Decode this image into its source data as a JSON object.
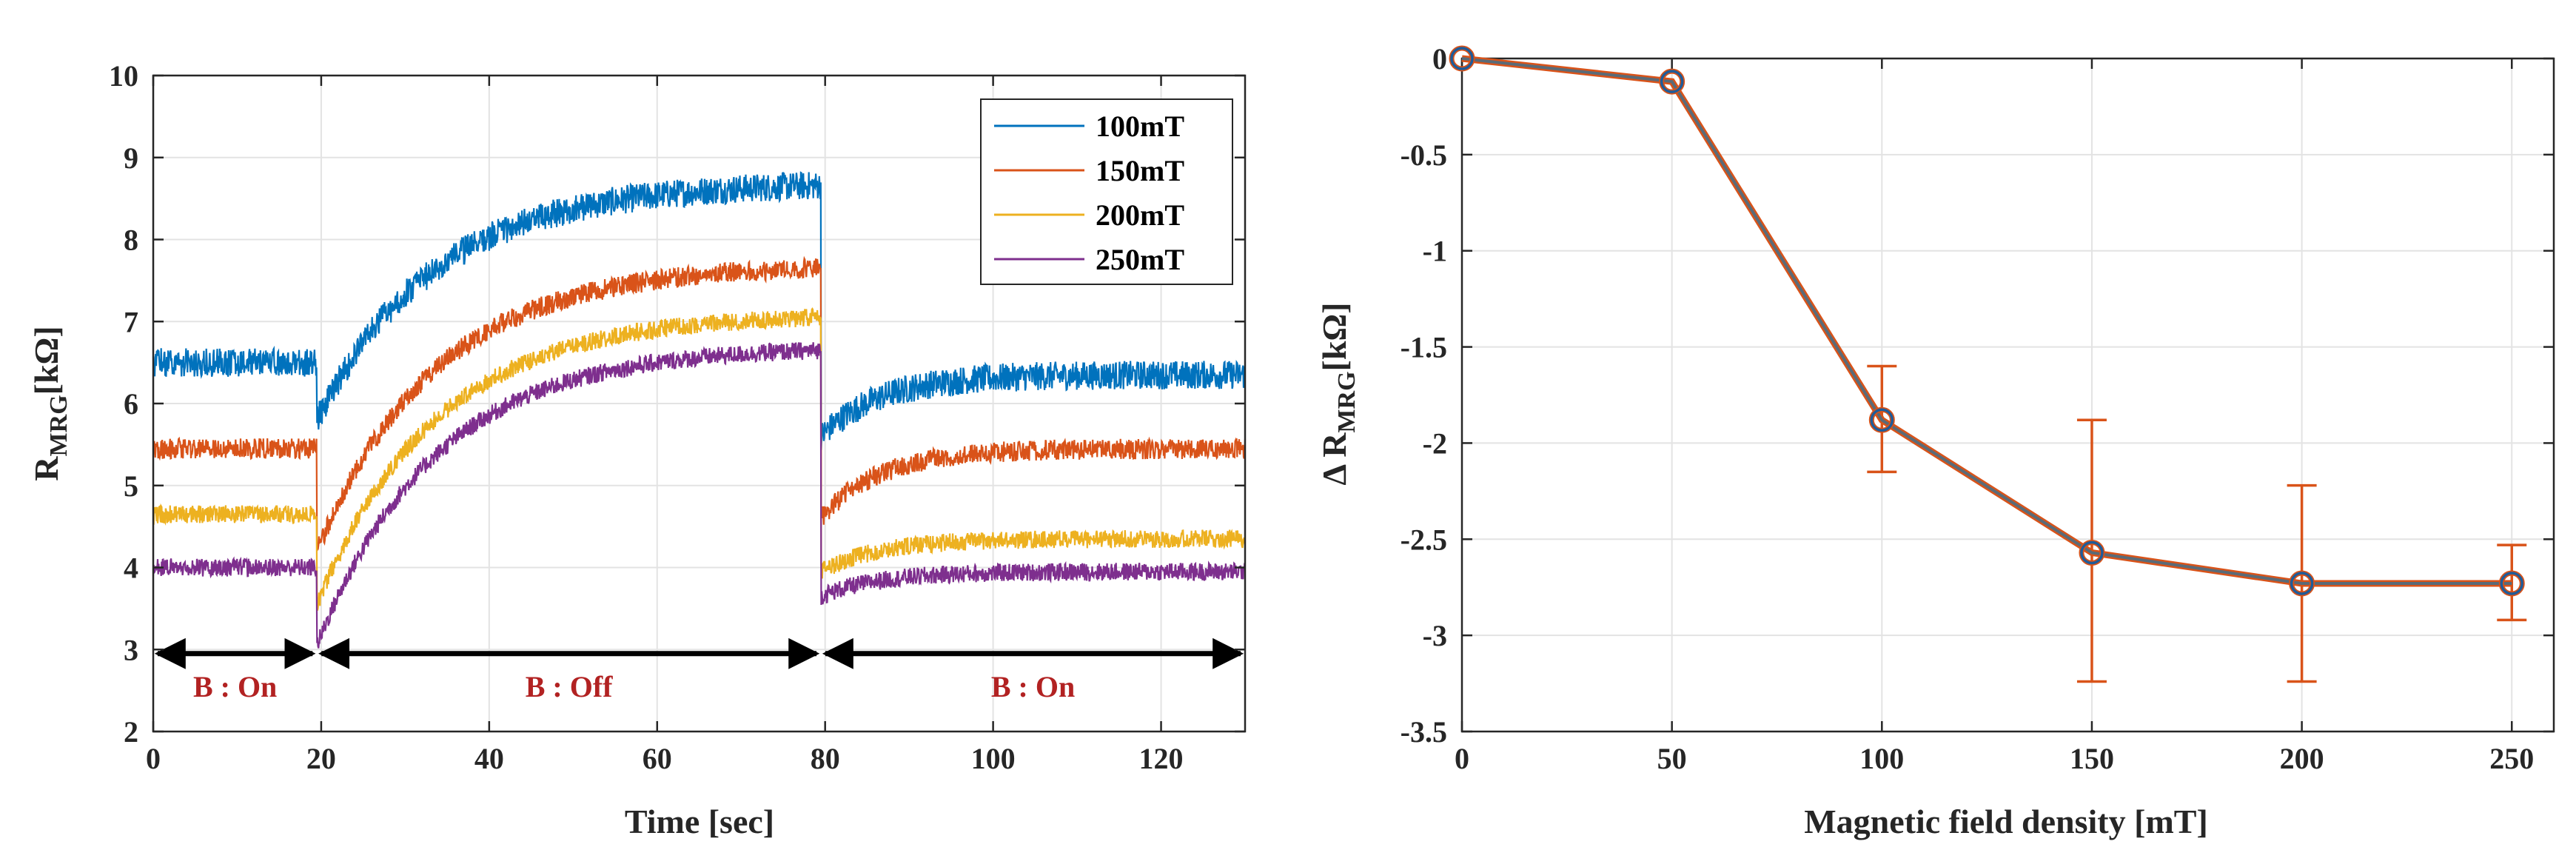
{
  "chart_data": [
    {
      "type": "line",
      "title": "",
      "xlabel": "Time [sec]",
      "ylabel_main": "R",
      "ylabel_sub": "MRG",
      "ylabel_unit": "[kΩ]",
      "xlim": [
        0,
        130
      ],
      "ylim": [
        2,
        10
      ],
      "xticks": [
        0,
        20,
        40,
        60,
        80,
        100,
        120
      ],
      "yticks": [
        2,
        3,
        4,
        5,
        6,
        7,
        8,
        9,
        10
      ],
      "grid": true,
      "legend_position": "top-right",
      "series": [
        {
          "name": "100mT",
          "color": "#0072BD",
          "on_level": 6.5,
          "drop_min": 5.8,
          "off_plateau": 8.7,
          "second_drop": 5.6,
          "end_level": 6.35,
          "noise": 0.35
        },
        {
          "name": "150mT",
          "color": "#D95319",
          "on_level": 5.45,
          "drop_min": 4.2,
          "off_plateau": 7.7,
          "second_drop": 4.6,
          "end_level": 5.45,
          "noise": 0.25
        },
        {
          "name": "200mT",
          "color": "#EDB120",
          "on_level": 4.65,
          "drop_min": 3.55,
          "off_plateau": 7.1,
          "second_drop": 3.95,
          "end_level": 4.35,
          "noise": 0.22
        },
        {
          "name": "250mT",
          "color": "#7E2F8E",
          "on_level": 4.0,
          "drop_min": 3.05,
          "off_plateau": 6.7,
          "second_drop": 3.65,
          "end_level": 3.95,
          "noise": 0.22
        }
      ],
      "phases": [
        {
          "label": "B : On",
          "x_start": 0,
          "x_end": 19.5,
          "y": 2.95
        },
        {
          "label": "B : Off",
          "x_start": 19.5,
          "x_end": 79.5,
          "y": 2.95
        },
        {
          "label": "B : On",
          "x_start": 79.5,
          "x_end": 130,
          "y": 2.95
        }
      ],
      "colors": {
        "phase_label": "#B22222",
        "axis": "#262626",
        "grid": "#e3e3e3"
      }
    },
    {
      "type": "line",
      "title": "",
      "xlabel": "Magnetic field density [mT]",
      "ylabel_main": "Δ R",
      "ylabel_sub": "MRG",
      "ylabel_unit": "[kΩ]",
      "xlim": [
        0,
        260
      ],
      "ylim": [
        -3.5,
        0
      ],
      "xticks": [
        0,
        50,
        100,
        150,
        200,
        250
      ],
      "yticks": [
        0,
        -0.5,
        -1,
        -1.5,
        -2,
        -2.5,
        -3,
        -3.5
      ],
      "ytick_labels": [
        "0",
        "-0.5",
        "-1",
        "-1.5",
        "-2",
        "-2.5",
        "-3",
        "-3.5"
      ],
      "grid": true,
      "x": [
        0,
        50,
        100,
        150,
        200,
        250
      ],
      "y": [
        0,
        -0.12,
        -1.88,
        -2.57,
        -2.73,
        -2.73
      ],
      "error_low": [
        0,
        0,
        -2.15,
        -3.24,
        -3.24,
        -2.92
      ],
      "error_high": [
        0,
        0,
        -1.6,
        -1.88,
        -2.22,
        -2.53
      ],
      "colors": {
        "line": "#5a6b78",
        "marker_fill": "#1F5C99",
        "marker_edge": "#D95319",
        "errorbar": "#D95319",
        "axis": "#262626",
        "grid": "#e3e3e3"
      }
    }
  ]
}
